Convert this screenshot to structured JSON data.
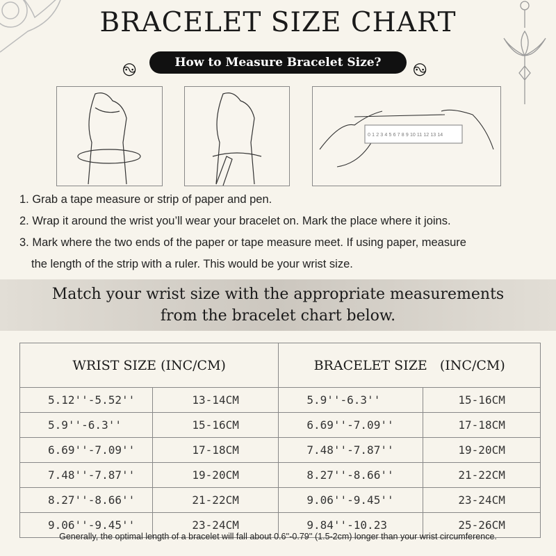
{
  "title": "BRACELET SIZE CHART",
  "subtitle": "How to Measure Bracelet Size?",
  "ruler_labels": [
    "0",
    "1",
    "2",
    "3",
    "4",
    "5",
    "6",
    "7",
    "8",
    "9",
    "10",
    "11",
    "12",
    "13",
    "14"
  ],
  "steps": [
    "1. Grab a tape measure or strip of paper and pen.",
    "2. Wrap it around the wrist you’ll wear your bracelet on. Mark the place where it joins.",
    "3. Mark where the two ends of the paper or tape measure meet. If using paper, measure",
    "the length of the strip with a ruler. This would be your wrist size."
  ],
  "band": {
    "line1": "Match your wrist size with the appropriate measurements",
    "line2": "from the bracelet chart below."
  },
  "table": {
    "headers": [
      "WRIST SIZE (INC/CM)",
      "BRACELET SIZE   (INC/CM)"
    ],
    "rows": [
      [
        "5.12''-5.52''",
        "13-14CM",
        "5.9''-6.3''",
        "15-16CM"
      ],
      [
        "5.9''-6.3''",
        "15-16CM",
        "6.69''-7.09''",
        "17-18CM"
      ],
      [
        "6.69''-7.09''",
        "17-18CM",
        "7.48''-7.87''",
        "19-20CM"
      ],
      [
        "7.48''-7.87''",
        "19-20CM",
        "8.27''-8.66''",
        "21-22CM"
      ],
      [
        "8.27''-8.66''",
        "21-22CM",
        "9.06''-9.45''",
        "23-24CM"
      ],
      [
        "9.06''-9.45''",
        "23-24CM",
        "9.84''-10.23",
        "25-26CM"
      ]
    ]
  },
  "footer": "Generally, the optimal length of a bracelet will fall about 0.6''-0.79'' (1.5-2cm) longer than your wrist circumference."
}
